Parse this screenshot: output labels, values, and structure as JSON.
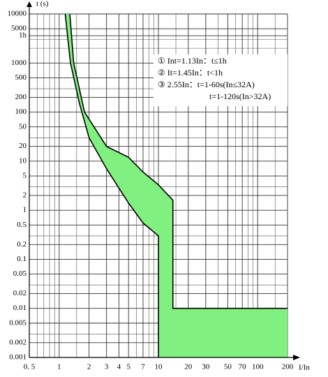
{
  "chart_data": {
    "type": "line",
    "y_label": "t (s)",
    "x_label": "I/In",
    "xlog": true,
    "ylog": true,
    "grid": true,
    "xlim": [
      0.5,
      200
    ],
    "ylim": [
      0.001,
      10000
    ],
    "xticks": [
      {
        "value": 0.5,
        "label": "0. 5"
      },
      1,
      2,
      3,
      4,
      5,
      7,
      10,
      20,
      30,
      50,
      70,
      100,
      200
    ],
    "yticks": [
      10000,
      5000,
      {
        "value": 3600,
        "label": "1h"
      },
      1000,
      500,
      200,
      100,
      50,
      20,
      10,
      5,
      2,
      1,
      0.5,
      0.2,
      0.1,
      0.05,
      0.02,
      0.01,
      0.005,
      0.002,
      0.001
    ],
    "xgrid": [
      0.6,
      0.7,
      0.8,
      0.9,
      1.5,
      6,
      8,
      9,
      15,
      40,
      60,
      80,
      90,
      150
    ],
    "ygrid": [
      3000,
      2000,
      300,
      30,
      3,
      0.3,
      0.03,
      0.003
    ],
    "fill_color": "#80f080",
    "series": [
      {
        "name": "upper",
        "color": "#000000",
        "x": [
          1.28,
          1.4,
          1.8,
          3,
          5,
          7,
          10,
          14,
          14,
          200
        ],
        "values": [
          10000,
          1000,
          100,
          20,
          12,
          6,
          3.3,
          1.6,
          0.01,
          0.01
        ]
      },
      {
        "name": "lower",
        "color": "#000000",
        "x": [
          1.15,
          1.3,
          1.6,
          2,
          3,
          5,
          7,
          10,
          10
        ],
        "values": [
          10000,
          1000,
          150,
          30,
          7,
          1.4,
          0.55,
          0.3,
          0.001
        ]
      }
    ],
    "annotations": [
      "① Int=1.13In：t≤1h",
      "② It=1.45In：t<1h",
      "③ 2.55In：t=1-60s(In≤32A)",
      "t=1-120s(In>32A)"
    ]
  }
}
